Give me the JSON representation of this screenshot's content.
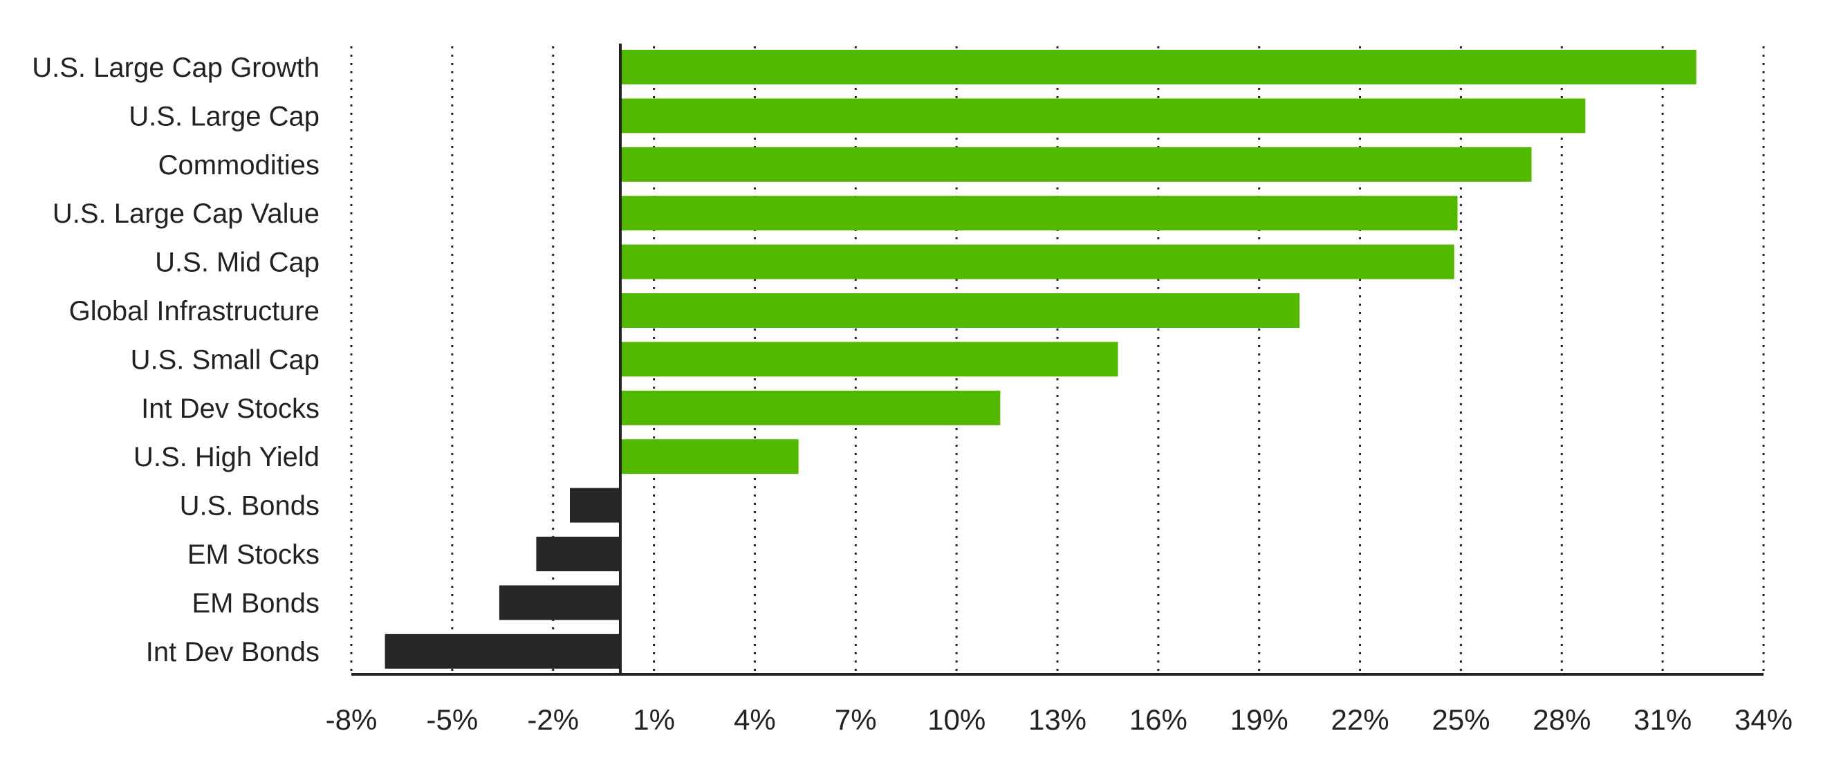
{
  "chart_data": {
    "type": "bar",
    "orientation": "horizontal",
    "categories": [
      "U.S. Large Cap Growth",
      "U.S. Large Cap",
      "Commodities",
      "U.S. Large Cap Value",
      "U.S. Mid Cap",
      "Global Infrastructure",
      "U.S. Small Cap",
      "Int Dev Stocks",
      "U.S. High Yield",
      "U.S. Bonds",
      "EM Stocks",
      "EM Bonds",
      "Int Dev Bonds"
    ],
    "values": [
      32.0,
      28.7,
      27.1,
      24.9,
      24.8,
      20.2,
      14.8,
      11.3,
      5.3,
      -1.5,
      -2.5,
      -3.6,
      -7.0
    ],
    "xlim": [
      -8,
      34
    ],
    "x_ticks": [
      -8,
      -5,
      -2,
      1,
      4,
      7,
      10,
      13,
      16,
      19,
      22,
      25,
      28,
      31,
      34
    ],
    "x_tick_labels": [
      "-8%",
      "-5%",
      "-2%",
      "1%",
      "4%",
      "7%",
      "10%",
      "13%",
      "16%",
      "19%",
      "22%",
      "25%",
      "28%",
      "31%",
      "34%"
    ],
    "grid": "vertical dotted",
    "colors": {
      "positive": "#53b900",
      "negative": "#262626",
      "axis": "#222222"
    },
    "title": "",
    "xlabel": "",
    "ylabel": ""
  }
}
